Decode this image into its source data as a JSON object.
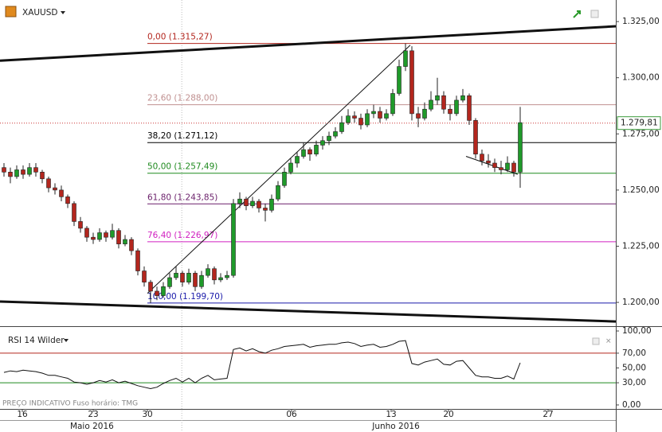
{
  "chart_data": {
    "type": "candlestick",
    "title": "XAUUSD",
    "ylim": [
      1189.4,
      1334.6
    ],
    "yticks": [
      {
        "value": 1325,
        "label": "1.325,00"
      },
      {
        "value": 1300,
        "label": "1.300,00"
      },
      {
        "value": 1275,
        "label": "1.275,00"
      },
      {
        "value": 1250,
        "label": "1.250,00"
      },
      {
        "value": 1225,
        "label": "1.225,00"
      },
      {
        "value": 1200,
        "label": "1.200,00"
      }
    ],
    "xlim": [
      -0.625,
      96
    ],
    "xticks": [
      {
        "value": 2.875,
        "label": "16"
      },
      {
        "value": 14,
        "label": "23"
      },
      {
        "value": 22.5,
        "label": "30"
      },
      {
        "value": 45.125,
        "label": "06"
      },
      {
        "value": 60.75,
        "label": "13"
      },
      {
        "value": 69.75,
        "label": "20"
      },
      {
        "value": 85.375,
        "label": "27"
      }
    ],
    "months": [
      {
        "value": 13.8,
        "label": "Maio 2016"
      },
      {
        "value": 61.5,
        "label": "Junho 2016"
      }
    ],
    "up_color": "#1f9a2a",
    "down_color": "#b3261e",
    "ohlc": [
      [
        1260,
        1262,
        1256,
        1258
      ],
      [
        1258,
        1260,
        1253,
        1256
      ],
      [
        1256,
        1261,
        1255,
        1259
      ],
      [
        1259,
        1261,
        1255,
        1257
      ],
      [
        1257,
        1262,
        1256,
        1260
      ],
      [
        1260,
        1262,
        1256,
        1258
      ],
      [
        1258,
        1259,
        1253,
        1255
      ],
      [
        1255,
        1256,
        1249,
        1251
      ],
      [
        1251,
        1253,
        1248,
        1250
      ],
      [
        1250,
        1252,
        1245,
        1247
      ],
      [
        1247,
        1248,
        1242,
        1244
      ],
      [
        1244,
        1245,
        1234,
        1236
      ],
      [
        1236,
        1238,
        1231,
        1233
      ],
      [
        1233,
        1234,
        1227,
        1229
      ],
      [
        1229,
        1231,
        1226,
        1228
      ],
      [
        1228,
        1233,
        1227,
        1231
      ],
      [
        1231,
        1232,
        1227,
        1229
      ],
      [
        1229,
        1235,
        1228,
        1232
      ],
      [
        1232,
        1233,
        1224,
        1226
      ],
      [
        1226,
        1230,
        1225,
        1228
      ],
      [
        1228,
        1229,
        1221,
        1223
      ],
      [
        1223,
        1224,
        1212,
        1214
      ],
      [
        1214,
        1216,
        1207,
        1209
      ],
      [
        1209,
        1210,
        1199.7,
        1205
      ],
      [
        1205,
        1207,
        1201,
        1203
      ],
      [
        1203,
        1209,
        1202,
        1207
      ],
      [
        1207,
        1213,
        1206,
        1211
      ],
      [
        1211,
        1216,
        1210,
        1213
      ],
      [
        1213,
        1214,
        1207,
        1209
      ],
      [
        1209,
        1215,
        1208,
        1213
      ],
      [
        1213,
        1214,
        1205,
        1207
      ],
      [
        1207,
        1214,
        1206,
        1212
      ],
      [
        1212,
        1217,
        1211,
        1215
      ],
      [
        1215,
        1216,
        1208,
        1210
      ],
      [
        1210,
        1213,
        1209,
        1211
      ],
      [
        1211,
        1214,
        1210,
        1212
      ],
      [
        1212,
        1246,
        1211,
        1244
      ],
      [
        1244,
        1249,
        1242,
        1246
      ],
      [
        1246,
        1247,
        1241,
        1243
      ],
      [
        1243,
        1247,
        1242,
        1245
      ],
      [
        1245,
        1246,
        1240,
        1242
      ],
      [
        1242,
        1244,
        1236,
        1241
      ],
      [
        1241,
        1248,
        1240,
        1246
      ],
      [
        1246,
        1254,
        1245,
        1252
      ],
      [
        1252,
        1260,
        1251,
        1258
      ],
      [
        1258,
        1264,
        1257,
        1262
      ],
      [
        1262,
        1267,
        1260,
        1265
      ],
      [
        1265,
        1271,
        1264,
        1268
      ],
      [
        1268,
        1269,
        1263,
        1266
      ],
      [
        1266,
        1272,
        1265,
        1270
      ],
      [
        1270,
        1274,
        1268,
        1272
      ],
      [
        1272,
        1276,
        1270,
        1274
      ],
      [
        1274,
        1278,
        1273,
        1276
      ],
      [
        1276,
        1283,
        1275,
        1280
      ],
      [
        1280,
        1286,
        1279,
        1283
      ],
      [
        1283,
        1285,
        1280,
        1282
      ],
      [
        1282,
        1284,
        1277,
        1279
      ],
      [
        1279,
        1286,
        1278,
        1284
      ],
      [
        1284,
        1288,
        1282,
        1285
      ],
      [
        1285,
        1287,
        1280,
        1282
      ],
      [
        1282,
        1286,
        1281,
        1284
      ],
      [
        1284,
        1295,
        1283,
        1293
      ],
      [
        1293,
        1308,
        1292,
        1305
      ],
      [
        1305,
        1315.3,
        1303,
        1312
      ],
      [
        1312,
        1314,
        1281,
        1284
      ],
      [
        1284,
        1287,
        1278,
        1282
      ],
      [
        1282,
        1289,
        1281,
        1286
      ],
      [
        1286,
        1294,
        1285,
        1290
      ],
      [
        1290,
        1300,
        1288,
        1292
      ],
      [
        1292,
        1294,
        1284,
        1286
      ],
      [
        1286,
        1288,
        1281,
        1284
      ],
      [
        1284,
        1292,
        1283,
        1290
      ],
      [
        1290,
        1295,
        1289,
        1292
      ],
      [
        1292,
        1293,
        1279,
        1281
      ],
      [
        1281,
        1282,
        1264,
        1266
      ],
      [
        1266,
        1268,
        1261,
        1263
      ],
      [
        1263,
        1266,
        1260,
        1262
      ],
      [
        1262,
        1264,
        1258,
        1260
      ],
      [
        1260,
        1263,
        1257,
        1259
      ],
      [
        1259,
        1265,
        1258,
        1262
      ],
      [
        1262,
        1263,
        1256,
        1258
      ],
      [
        1258,
        1287,
        1251,
        1280
      ]
    ],
    "fib_levels": [
      {
        "value": 1315.27,
        "label": "0,00 (1.315,27)",
        "color": "#b3261e"
      },
      {
        "value": 1288.0,
        "label": "23,60 (1.288,00)",
        "color": "#c09090"
      },
      {
        "value": 1271.12,
        "label": "38,20 (1.271,12)",
        "color": "#000000"
      },
      {
        "value": 1257.49,
        "label": "50,00 (1.257,49)",
        "color": "#1f8a1f"
      },
      {
        "value": 1243.85,
        "label": "61,80 (1.243,85)",
        "color": "#6a1f6a"
      },
      {
        "value": 1226.97,
        "label": "76,40 (1.226,97)",
        "color": "#d020c0"
      },
      {
        "value": 1199.7,
        "label": "100,00 (1.199,70)",
        "color": "#1a1aaa"
      }
    ],
    "trendlines": [
      {
        "x": [
          -0.625,
          96
        ],
        "y": [
          1307.6,
          1322.9
        ],
        "width": 3
      },
      {
        "x": [
          -0.625,
          96
        ],
        "y": [
          1200.4,
          1191.5
        ],
        "width": 3
      },
      {
        "x": [
          22.5,
          63.75
        ],
        "y": [
          1204,
          1314.5
        ],
        "width": 1
      },
      {
        "x": [
          72.5,
          80.6
        ],
        "y": [
          1265,
          1257
        ],
        "width": 1
      }
    ],
    "last_price": {
      "value": 1279.81,
      "label": "1.279,81"
    },
    "rsi": {
      "title": "RSI 14 Wilder",
      "ylim": [
        -5.4,
        105.4
      ],
      "yticks": [
        {
          "value": 100,
          "label": "100,00"
        },
        {
          "value": 70,
          "label": "70,00"
        },
        {
          "value": 50,
          "label": "50,00"
        },
        {
          "value": 30,
          "label": "30,00"
        },
        {
          "value": 0,
          "label": "0,00"
        }
      ],
      "levels": [
        {
          "value": 70,
          "color": "#b3261e"
        },
        {
          "value": 30,
          "color": "#1f8a1f"
        }
      ],
      "values": [
        44,
        46,
        45,
        47,
        46,
        45,
        43,
        40,
        40,
        38,
        36,
        31,
        30,
        28,
        30,
        33,
        31,
        34,
        30,
        32,
        29,
        26,
        24,
        22,
        24,
        29,
        33,
        36,
        31,
        36,
        30,
        36,
        40,
        34,
        35,
        36,
        75,
        77,
        73,
        76,
        72,
        70,
        74,
        76,
        79,
        80,
        81,
        82,
        78,
        80,
        81,
        82,
        82,
        84,
        85,
        83,
        79,
        81,
        82,
        78,
        79,
        82,
        86,
        87,
        56,
        54,
        58,
        60,
        62,
        55,
        54,
        59,
        60,
        50,
        40,
        38,
        38,
        36,
        36,
        39,
        35,
        57
      ]
    },
    "footer": "PREÇO INDICATIVO   Fuso horário: TMG"
  }
}
